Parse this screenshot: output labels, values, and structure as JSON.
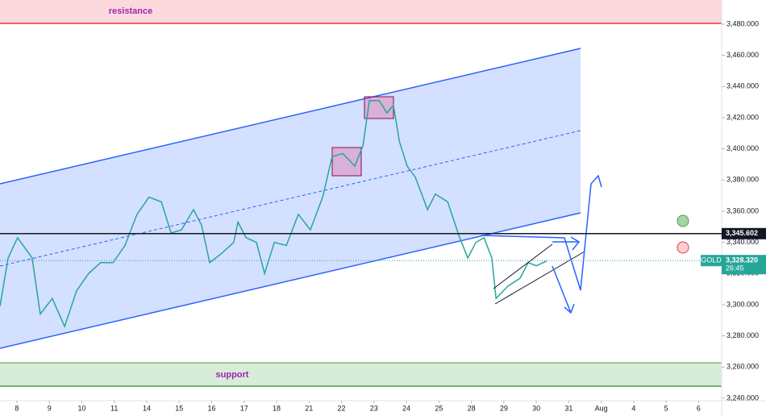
{
  "chart_data": {
    "type": "line",
    "symbol": "GOLD",
    "countdown": "26:45",
    "resistance_label": "resistance",
    "support_label": "support",
    "color": "#26a69a",
    "level": {
      "value": 3345.602,
      "label": "3,345.602"
    },
    "last_price": {
      "value": 3328.32,
      "label": "3,328.320"
    },
    "x": [
      -0.52,
      -0.27,
      0.02,
      0.47,
      0.72,
      1.09,
      1.47,
      1.84,
      2.21,
      2.58,
      2.96,
      3.33,
      3.7,
      4.07,
      4.45,
      4.75,
      5.07,
      5.44,
      5.69,
      5.94,
      6.31,
      6.68,
      6.81,
      7.06,
      7.38,
      7.63,
      7.93,
      8.3,
      8.67,
      9.04,
      9.42,
      9.71,
      10.04,
      10.41,
      10.66,
      10.86,
      11.16,
      11.4,
      11.6,
      11.78,
      12.02,
      12.27,
      12.65,
      12.89,
      13.27,
      13.64,
      13.89,
      14.14,
      14.39,
      14.63,
      14.76,
      15.13,
      15.5,
      15.75,
      16.0,
      16.32
    ],
    "values": [
      3299,
      3330,
      3343,
      3330,
      3294,
      3304,
      3286,
      3309,
      3320,
      3327,
      3327,
      3338,
      3358,
      3369,
      3366,
      3346,
      3348,
      3361,
      3351,
      3327,
      3333,
      3340,
      3353,
      3343,
      3340,
      3320,
      3340,
      3338,
      3358,
      3348,
      3369,
      3395,
      3397,
      3389,
      3402,
      3431,
      3431,
      3423,
      3428,
      3405,
      3389,
      3382,
      3361,
      3371,
      3366,
      3343,
      3330,
      3340,
      3343,
      3330,
      3304,
      3312,
      3317,
      3327,
      3325,
      3328
    ],
    "xlim": [
      -0.52,
      21.71
    ],
    "xticks": [
      {
        "value": 0,
        "label": "8"
      },
      {
        "value": 1,
        "label": "9"
      },
      {
        "value": 2,
        "label": "10"
      },
      {
        "value": 3,
        "label": "11"
      },
      {
        "value": 4,
        "label": "14"
      },
      {
        "value": 5,
        "label": "15"
      },
      {
        "value": 6,
        "label": "16"
      },
      {
        "value": 7,
        "label": "17"
      },
      {
        "value": 8,
        "label": "18"
      },
      {
        "value": 9,
        "label": "21"
      },
      {
        "value": 10,
        "label": "22"
      },
      {
        "value": 11,
        "label": "23"
      },
      {
        "value": 12,
        "label": "24"
      },
      {
        "value": 13,
        "label": "25"
      },
      {
        "value": 14,
        "label": "28"
      },
      {
        "value": 15,
        "label": "29"
      },
      {
        "value": 16,
        "label": "30"
      },
      {
        "value": 17,
        "label": "31"
      },
      {
        "value": 18,
        "label": "Aug"
      },
      {
        "value": 19,
        "label": "4"
      },
      {
        "value": 20,
        "label": "5"
      },
      {
        "value": 21,
        "label": "6"
      }
    ],
    "ylim": [
      3228.6,
      3495.5
    ],
    "yticks": [
      {
        "value": 3240,
        "label": "3,240.000"
      },
      {
        "value": 3260,
        "label": "3,260.000"
      },
      {
        "value": 3280,
        "label": "3,280.000"
      },
      {
        "value": 3300,
        "label": "3,300.000"
      },
      {
        "value": 3320,
        "label": "3,320.000"
      },
      {
        "value": 3340,
        "label": "3,340.000"
      },
      {
        "value": 3360,
        "label": "3,360.000"
      },
      {
        "value": 3380,
        "label": "3,380.000"
      },
      {
        "value": 3400,
        "label": "3,400.000"
      },
      {
        "value": 3420,
        "label": "3,420.000"
      },
      {
        "value": 3440,
        "label": "3,440.000"
      },
      {
        "value": 3460,
        "label": "3,460.000"
      },
      {
        "value": 3480,
        "label": "3,480.000"
      }
    ]
  }
}
